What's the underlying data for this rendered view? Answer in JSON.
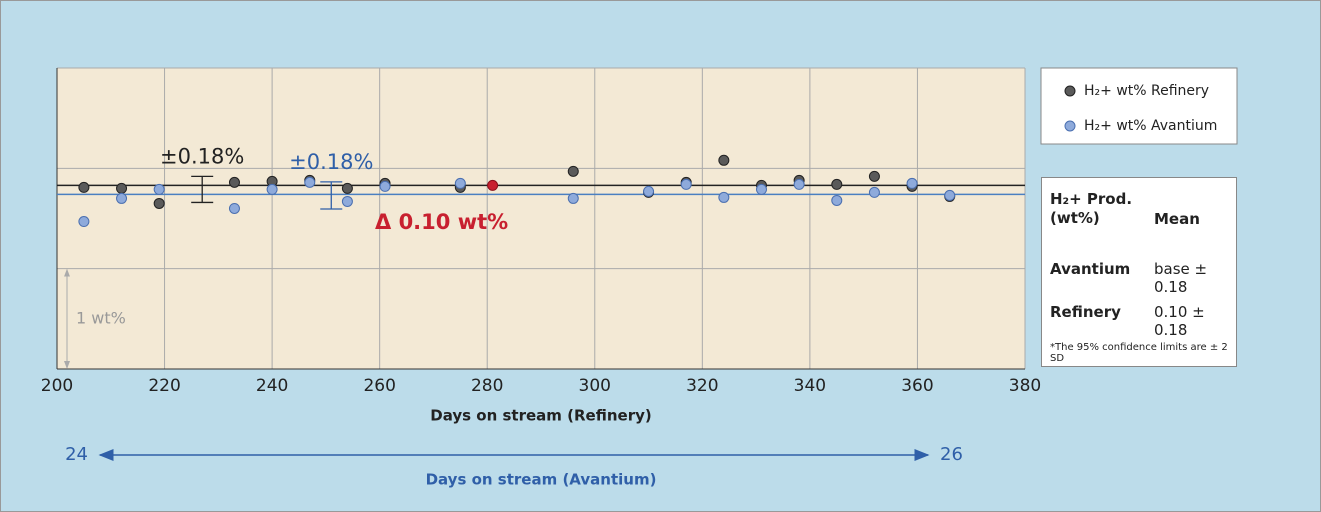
{
  "chart_data": {
    "type": "scatter",
    "xlabel": "Days on stream (Refinery)",
    "xlim": [
      200,
      380
    ],
    "xticks": [
      200,
      220,
      240,
      260,
      280,
      300,
      320,
      340,
      360,
      380
    ],
    "ylim": [
      0,
      3
    ],
    "yticks": [
      0,
      1,
      2,
      3
    ],
    "grid": true,
    "series": [
      {
        "name": "H₂+ wt% Refinery",
        "color": "#5a5a5a",
        "x": [
          205,
          212,
          219,
          233,
          240,
          247,
          254,
          261,
          275,
          296,
          310,
          317,
          324,
          331,
          338,
          345,
          352,
          359,
          366
        ],
        "values": [
          1.81,
          1.8,
          1.65,
          1.86,
          1.87,
          1.88,
          1.8,
          1.85,
          1.81,
          1.97,
          1.76,
          1.86,
          2.08,
          1.83,
          1.88,
          1.84,
          1.92,
          1.82,
          1.72
        ]
      },
      {
        "name": "H₂+ wt% Avantium",
        "color": "#8eaadb",
        "x": [
          205,
          212,
          219,
          233,
          240,
          247,
          254,
          261,
          275,
          296,
          310,
          317,
          324,
          331,
          338,
          345,
          352,
          359,
          366
        ],
        "values": [
          1.47,
          1.7,
          1.79,
          1.6,
          1.79,
          1.86,
          1.67,
          1.82,
          1.85,
          1.7,
          1.77,
          1.84,
          1.71,
          1.79,
          1.84,
          1.68,
          1.76,
          1.85,
          1.73
        ]
      }
    ],
    "reference_lines": {
      "values": [
        1.83,
        1.74
      ],
      "colors": [
        "#222222",
        "#4a7fc1"
      ]
    },
    "error_bars": [
      {
        "text": "±0.18%",
        "x": 227,
        "value": 1.79,
        "error": 0.13,
        "color": "#222222"
      },
      {
        "text": "±0.18%",
        "x": 251,
        "value": 1.73,
        "error": 0.135,
        "color": "#2f5fa8"
      }
    ],
    "delta": {
      "text": "Δ 0.10 wt%",
      "x": 281,
      "value": 1.83,
      "color": "#c8202f"
    },
    "scale_note": {
      "text": "1 wt%",
      "from": 0,
      "to": 1
    },
    "x2label": "Days on stream (Avantium)",
    "x2lim": [
      24,
      26
    ],
    "x2ticks": [
      24,
      26
    ],
    "table": {
      "header": [
        "H₂+ Prod. (wt%)",
        "Mean"
      ],
      "rows": [
        [
          "Avantium",
          "base ± 0.18"
        ],
        [
          "Refinery",
          "0.10 ± 0.18"
        ]
      ],
      "note": "*The 95% confidence limits are ± 2 SD"
    }
  }
}
